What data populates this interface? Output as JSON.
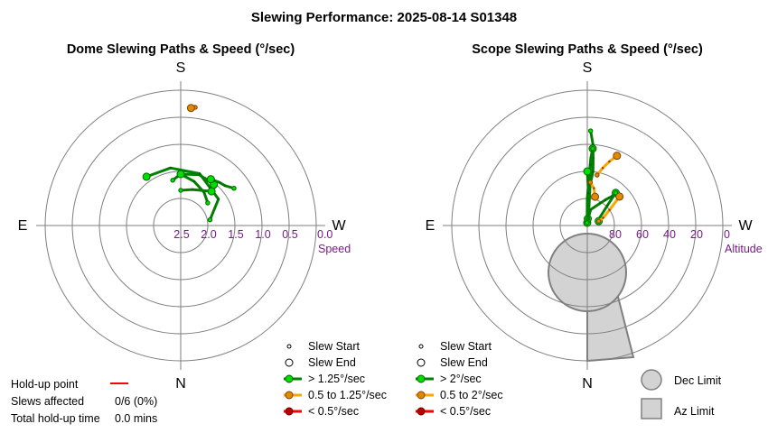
{
  "title": "Slewing Performance: 2025-08-14 S01348",
  "colors": {
    "fast": "#008000",
    "fast_fill": "#00e000",
    "medium": "#ffa500",
    "medium_fill": "#e08a00",
    "slow": "#ff0000",
    "slow_fill": "#c00000",
    "holdup": "#ff0000",
    "grid": "#7f7f7f",
    "axis_text": "#7a1a8a",
    "limit_fill": "#d3d3d3",
    "limit_stroke": "#808080"
  },
  "chart_data": [
    {
      "type": "scatter",
      "subtype": "polar-paths",
      "title": "Dome Slewing Paths & Speed (°/sec)",
      "compass": {
        "top": "S",
        "bottom": "N",
        "left": "E",
        "right": "W"
      },
      "radial_axis": {
        "label": "Speed",
        "ticks": [
          "2.5",
          "2.0",
          "1.5",
          "1.0",
          "0.5",
          "0.0"
        ]
      },
      "legend": {
        "start": "Slew Start",
        "end": "Slew End",
        "fast": "> 1.25°/sec",
        "medium": "0.5 to 1.25°/sec",
        "slow": "< 0.5°/sec"
      },
      "paths": [
        {
          "speed": "fast",
          "azimuth_deg": [
            101,
            125,
            160,
            190,
            215
          ],
          "radius_speed": [
            2.45,
            2.15,
            1.98,
            1.92,
            1.9
          ]
        },
        {
          "speed": "fast",
          "azimuth_deg": [
            190,
            180,
            160,
            141
          ],
          "radius_speed": [
            2.15,
            2.05,
            2.0,
            2.03
          ]
        },
        {
          "speed": "fast",
          "azimuth_deg": [
            130,
            145,
            163,
            180
          ],
          "radius_speed": [
            2.35,
            2.25,
            2.15,
            2.05
          ]
        },
        {
          "speed": "fast",
          "azimuth_deg": [
            180,
            162,
            138
          ],
          "radius_speed": [
            2.35,
            2.3,
            2.15
          ]
        },
        {
          "speed": "fast",
          "azimuth_deg": [
            125,
            132,
            138,
            147
          ],
          "radius_speed": [
            1.8,
            1.9,
            1.93,
            1.98
          ]
        },
        {
          "speed": "medium",
          "azimuth_deg": [
            173,
            175
          ],
          "radius_speed": [
            0.8,
            0.82
          ]
        }
      ]
    },
    {
      "type": "scatter",
      "subtype": "polar-paths",
      "title": "Scope Slewing Paths & Speed (°/sec)",
      "compass": {
        "top": "S",
        "bottom": "N",
        "left": "E",
        "right": "W"
      },
      "radial_axis": {
        "label": "Altitude",
        "ticks": [
          "80",
          "60",
          "40",
          "20",
          "0"
        ]
      },
      "legend": {
        "start": "Slew Start",
        "end": "Slew End",
        "fast": "> 2°/sec",
        "medium": "0.5 to 2°/sec",
        "slow": "< 0.5°/sec"
      },
      "limits": {
        "dec_label": "Dec Limit",
        "az_label": "Az Limit"
      },
      "paths": [
        {
          "speed": "fast",
          "azimuth_deg": [
            178,
            176,
            175,
            174,
            176,
            178,
            179,
            180,
            182
          ],
          "altitude_deg": [
            20,
            30,
            40,
            50,
            60,
            70,
            80,
            86,
            88
          ]
        },
        {
          "speed": "fast",
          "azimuth_deg": [
            183,
            180,
            178,
            177,
            176
          ],
          "altitude_deg": [
            88,
            70,
            55,
            40,
            33
          ]
        },
        {
          "speed": "fast",
          "azimuth_deg": [
            176,
            177,
            176,
            175,
            176
          ],
          "altitude_deg": [
            33,
            45,
            60,
            75,
            85
          ]
        },
        {
          "speed": "fast",
          "azimuth_deg": [
            176,
            178,
            180
          ],
          "altitude_deg": [
            85,
            66,
            50
          ]
        },
        {
          "speed": "fast",
          "azimuth_deg": [
            183,
            168,
            150,
            145,
            142,
            140,
            139
          ],
          "altitude_deg": [
            88,
            78,
            71,
            67,
            64,
            62,
            58
          ]
        },
        {
          "speed": "fast",
          "azimuth_deg": [
            139,
            135,
            120,
            111
          ],
          "altitude_deg": [
            58,
            69,
            80,
            81
          ]
        },
        {
          "speed": "medium",
          "azimuth_deg": [
            169,
            165,
            161,
            157
          ],
          "altitude_deg": [
            52,
            46,
            40,
            34
          ]
        },
        {
          "speed": "medium",
          "azimuth_deg": [
            111,
            116,
            125,
            132
          ],
          "altitude_deg": [
            81,
            77,
            70,
            58
          ]
        },
        {
          "speed": "medium",
          "azimuth_deg": [
            176,
            170,
            165
          ],
          "altitude_deg": [
            58,
            62,
            68
          ]
        }
      ]
    }
  ],
  "holdup": {
    "point_label": "Hold-up point",
    "slews_label": "Slews affected",
    "slews_value": "0/6 (0%)",
    "time_label": "Total hold-up time",
    "time_value": "0.0 mins"
  }
}
